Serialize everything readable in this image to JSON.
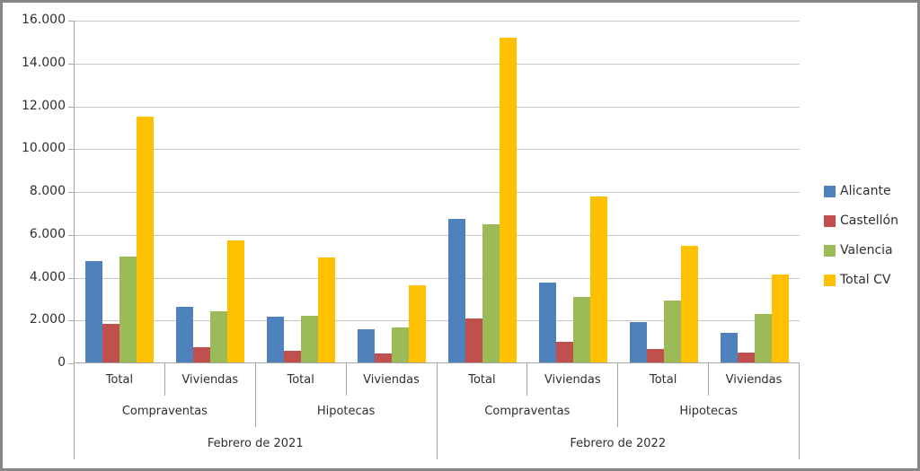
{
  "chart_data": {
    "type": "bar",
    "title": "",
    "xlabel": "",
    "ylabel": "",
    "y_axis": {
      "min": 0,
      "max": 16000,
      "step": 2000,
      "ticks": [
        {
          "value": 0,
          "label": "0"
        },
        {
          "value": 2000,
          "label": "2.000"
        },
        {
          "value": 4000,
          "label": "4.000"
        },
        {
          "value": 6000,
          "label": "6.000"
        },
        {
          "value": 8000,
          "label": "8.000"
        },
        {
          "value": 10000,
          "label": "10.000"
        },
        {
          "value": 12000,
          "label": "12.000"
        },
        {
          "value": 14000,
          "label": "14.000"
        },
        {
          "value": 16000,
          "label": "16.000"
        }
      ]
    },
    "category_axis": {
      "level1": [
        "Total",
        "Viviendas",
        "Total",
        "Viviendas",
        "Total",
        "Viviendas",
        "Total",
        "Viviendas"
      ],
      "level2": [
        "Compraventas",
        "Hipotecas",
        "Compraventas",
        "Hipotecas"
      ],
      "level3": [
        "Febrero de 2021",
        "Febrero de 2022"
      ]
    },
    "series": [
      {
        "name": "Alicante",
        "color": "#4F81BD",
        "values": [
          4750,
          2600,
          2150,
          1550,
          6700,
          3750,
          1900,
          1400
        ]
      },
      {
        "name": "Castellón",
        "color": "#C0504D",
        "values": [
          1800,
          700,
          550,
          400,
          2050,
          950,
          650,
          450
        ]
      },
      {
        "name": "Valencia",
        "color": "#9BBB59",
        "values": [
          4950,
          2400,
          2200,
          1650,
          6450,
          3050,
          2900,
          2250
        ]
      },
      {
        "name": "Total CV",
        "color": "#FFC000",
        "values": [
          11500,
          5700,
          4900,
          3600,
          15200,
          7750,
          5450,
          4100
        ]
      }
    ],
    "legend_position": "right",
    "grid": true,
    "colors": {
      "gridline": "#c8c8c8",
      "axis_line": "#a6a6a6",
      "frame_border": "#868686",
      "text": "#2f2f2f"
    }
  }
}
